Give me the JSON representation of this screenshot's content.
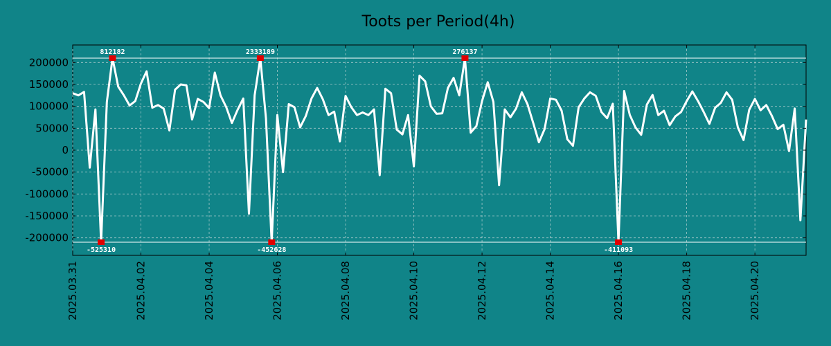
{
  "chart_data": {
    "type": "line",
    "title": "Toots per Period(4h)",
    "xlabel": "",
    "ylabel": "",
    "ylim": [
      -240000,
      240000
    ],
    "xlim": [
      0,
      129
    ],
    "clip_limits": [
      210000,
      -210000
    ],
    "yticks": [
      -200000,
      -150000,
      -100000,
      -50000,
      0,
      50000,
      100000,
      150000,
      200000
    ],
    "ytick_labels": [
      "-200000",
      "-150000",
      "-100000",
      "-50000",
      "0",
      "50000",
      "100000",
      "150000",
      "200000"
    ],
    "xticks": [
      {
        "label": "2025.03.31",
        "x": 0
      },
      {
        "label": "2025.04.02",
        "x": 12
      },
      {
        "label": "2025.04.04",
        "x": 24
      },
      {
        "label": "2025.04.06",
        "x": 36
      },
      {
        "label": "2025.04.08",
        "x": 48
      },
      {
        "label": "2025.04.10",
        "x": 60
      },
      {
        "label": "2025.04.12",
        "x": 72
      },
      {
        "label": "2025.04.14",
        "x": 84
      },
      {
        "label": "2025.04.16",
        "x": 96
      },
      {
        "label": "2025.04.18",
        "x": 108
      },
      {
        "label": "2025.04.20",
        "x": 120
      }
    ],
    "series": [
      {
        "name": "toots",
        "values": [
          130000,
          125000,
          133000,
          -40000,
          93000,
          -210000,
          110000,
          210000,
          145000,
          125000,
          102000,
          112000,
          152000,
          180000,
          97000,
          103000,
          95000,
          45000,
          138000,
          150000,
          148000,
          70000,
          117000,
          110000,
          96000,
          177000,
          125000,
          98000,
          62000,
          92000,
          118000,
          -145000,
          125000,
          210000,
          72000,
          -210000,
          80000,
          -50000,
          105000,
          98000,
          52000,
          78000,
          118000,
          142000,
          116000,
          80000,
          88000,
          20000,
          124000,
          98000,
          80000,
          86000,
          80000,
          93000,
          -57000,
          140000,
          130000,
          47000,
          36000,
          80000,
          -37000,
          170000,
          157000,
          100000,
          83000,
          84000,
          142000,
          165000,
          125000,
          210000,
          40000,
          55000,
          112000,
          155000,
          110000,
          -80000,
          93000,
          75000,
          95000,
          132000,
          105000,
          62000,
          18000,
          48000,
          118000,
          115000,
          90000,
          25000,
          10000,
          98000,
          118000,
          132000,
          124000,
          87000,
          73000,
          106000,
          -210000,
          135000,
          80000,
          52000,
          35000,
          104000,
          126000,
          80000,
          90000,
          57000,
          77000,
          87000,
          112000,
          134000,
          112000,
          87000,
          60000,
          97000,
          108000,
          132000,
          115000,
          52000,
          23000,
          92000,
          117000,
          91000,
          103000,
          78000,
          48000,
          58000,
          -2000,
          95000,
          -160000,
          70000
        ]
      }
    ],
    "annotations": [
      {
        "x": 7,
        "y": 210000,
        "text": "812182",
        "pos": "above"
      },
      {
        "x": 5,
        "y": -210000,
        "text": "-525310",
        "pos": "below"
      },
      {
        "x": 33,
        "y": 210000,
        "text": "2333189",
        "pos": "above"
      },
      {
        "x": 35,
        "y": -210000,
        "text": "-452628",
        "pos": "below"
      },
      {
        "x": 69,
        "y": 210000,
        "text": "276137",
        "pos": "above"
      },
      {
        "x": 96,
        "y": -210000,
        "text": "-411093",
        "pos": "below"
      }
    ]
  }
}
